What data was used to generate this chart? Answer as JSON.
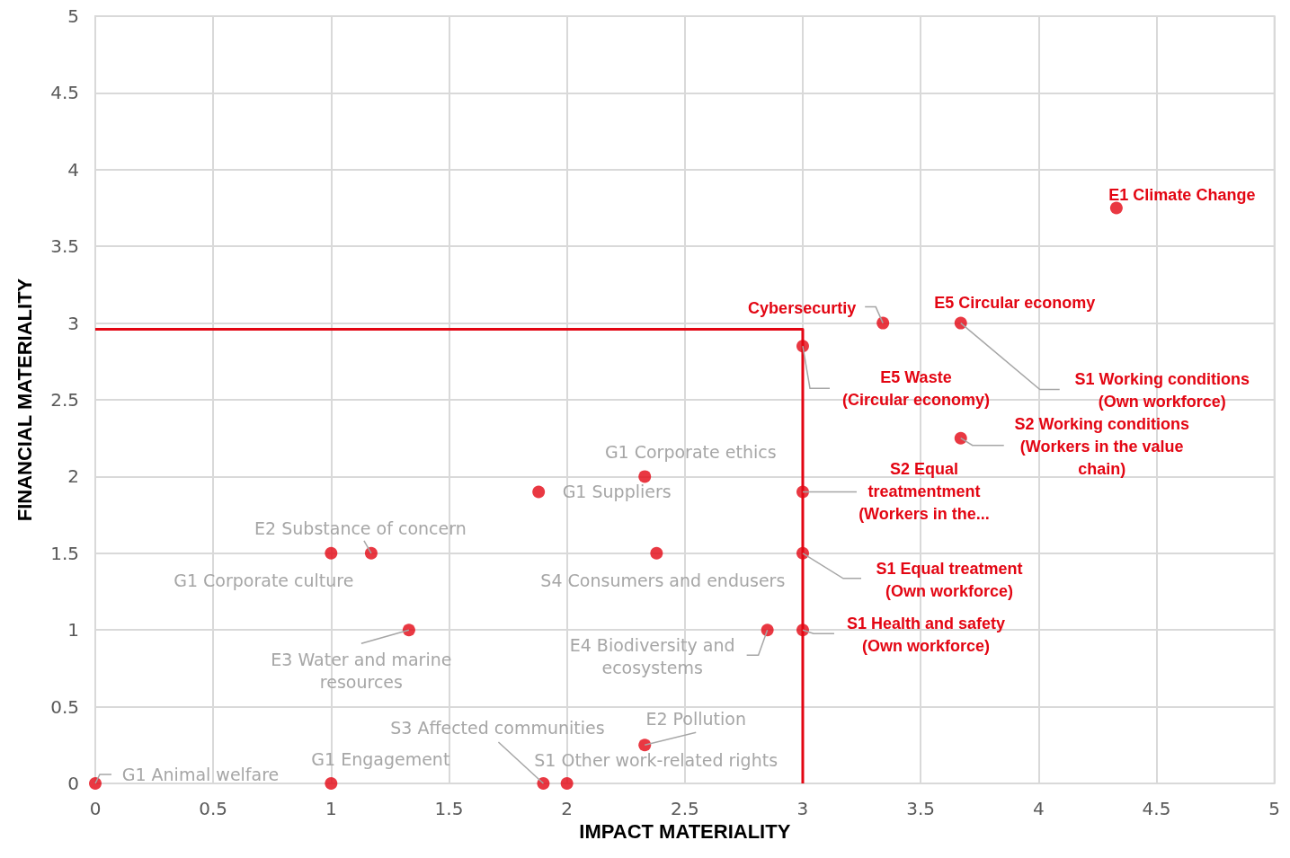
{
  "chart_data": {
    "type": "scatter",
    "xlabel": "IMPACT MATERIALITY",
    "ylabel": "FINANCIAL MATERIALITY",
    "xlim": [
      0,
      5
    ],
    "xticks": [
      0,
      0.5,
      1,
      1.5,
      2,
      2.5,
      3,
      3.5,
      4,
      4.5,
      5
    ],
    "ylim": [
      0,
      5
    ],
    "yticks": [
      0,
      0.5,
      1,
      1.5,
      2,
      2.5,
      3,
      3.5,
      4,
      4.5,
      5
    ],
    "grid": true,
    "marker": "circle",
    "series": [
      {
        "color": "#e30613",
        "x": [
          4.33,
          3.34,
          3.67,
          3,
          3.67,
          3,
          3,
          3,
          2.33,
          1.88,
          1.17,
          1,
          2.38,
          1.33,
          2.85,
          2.33,
          1.9,
          2,
          1,
          0
        ],
        "values": [
          3.75,
          3,
          3,
          2.85,
          2.25,
          1.9,
          1.5,
          1,
          2,
          1.9,
          1.5,
          1.5,
          1.5,
          1,
          1,
          0.25,
          0,
          0,
          0,
          0
        ]
      },
      {
        "type": "line",
        "color": "#e30613",
        "marker": "none",
        "x": [
          0,
          3,
          3
        ],
        "values": [
          2.96,
          2.96,
          0
        ]
      }
    ],
    "annotations": [
      {
        "text": "E1 Climate Change",
        "x": 4.33,
        "y": 3.75
      },
      {
        "text": "Cybersecurtiy",
        "x": 3.34,
        "y": 3
      },
      {
        "text": "E5 Circular economy",
        "x": 3.67,
        "y": 3
      },
      {
        "text": "E5 Waste (Circular economy)",
        "x": 3,
        "y": 2.85
      },
      {
        "text": "S1 Working conditions (Own workforce)",
        "x": 3.67,
        "y": 3
      },
      {
        "text": "S2 Working conditions (Workers in the value chain)",
        "x": 3.67,
        "y": 2.25
      },
      {
        "text": "S2 Equal treatmentment (Workers in the...",
        "x": 3,
        "y": 1.9
      },
      {
        "text": "S1 Equal treatment (Own workforce)",
        "x": 3,
        "y": 1.5
      },
      {
        "text": "S1 Health and safety (Own workforce)",
        "x": 3,
        "y": 1
      },
      {
        "text": "G1 Corporate ethics",
        "x": 2.33,
        "y": 2
      },
      {
        "text": "G1 Suppliers",
        "x": 1.88,
        "y": 1.9
      },
      {
        "text": "E2 Substance of concern",
        "x": 1.17,
        "y": 1.5
      },
      {
        "text": "G1 Corporate culture",
        "x": 1,
        "y": 1.5
      },
      {
        "text": "S4 Consumers and endusers",
        "x": 2.38,
        "y": 1.5
      },
      {
        "text": "E3 Water and marine resources",
        "x": 1.33,
        "y": 1
      },
      {
        "text": "E4 Biodiversity and ecosystems",
        "x": 2.85,
        "y": 1
      },
      {
        "text": "E2 Pollution",
        "x": 2.33,
        "y": 0.25
      },
      {
        "text": "S3 Affected communities",
        "x": 1.9,
        "y": 0
      },
      {
        "text": "S1 Other work-related rights",
        "x": 2,
        "y": 0
      },
      {
        "text": "G1 Engagement",
        "x": 1,
        "y": 0
      },
      {
        "text": "G1 Animal welfare",
        "x": 0,
        "y": 0
      }
    ]
  }
}
